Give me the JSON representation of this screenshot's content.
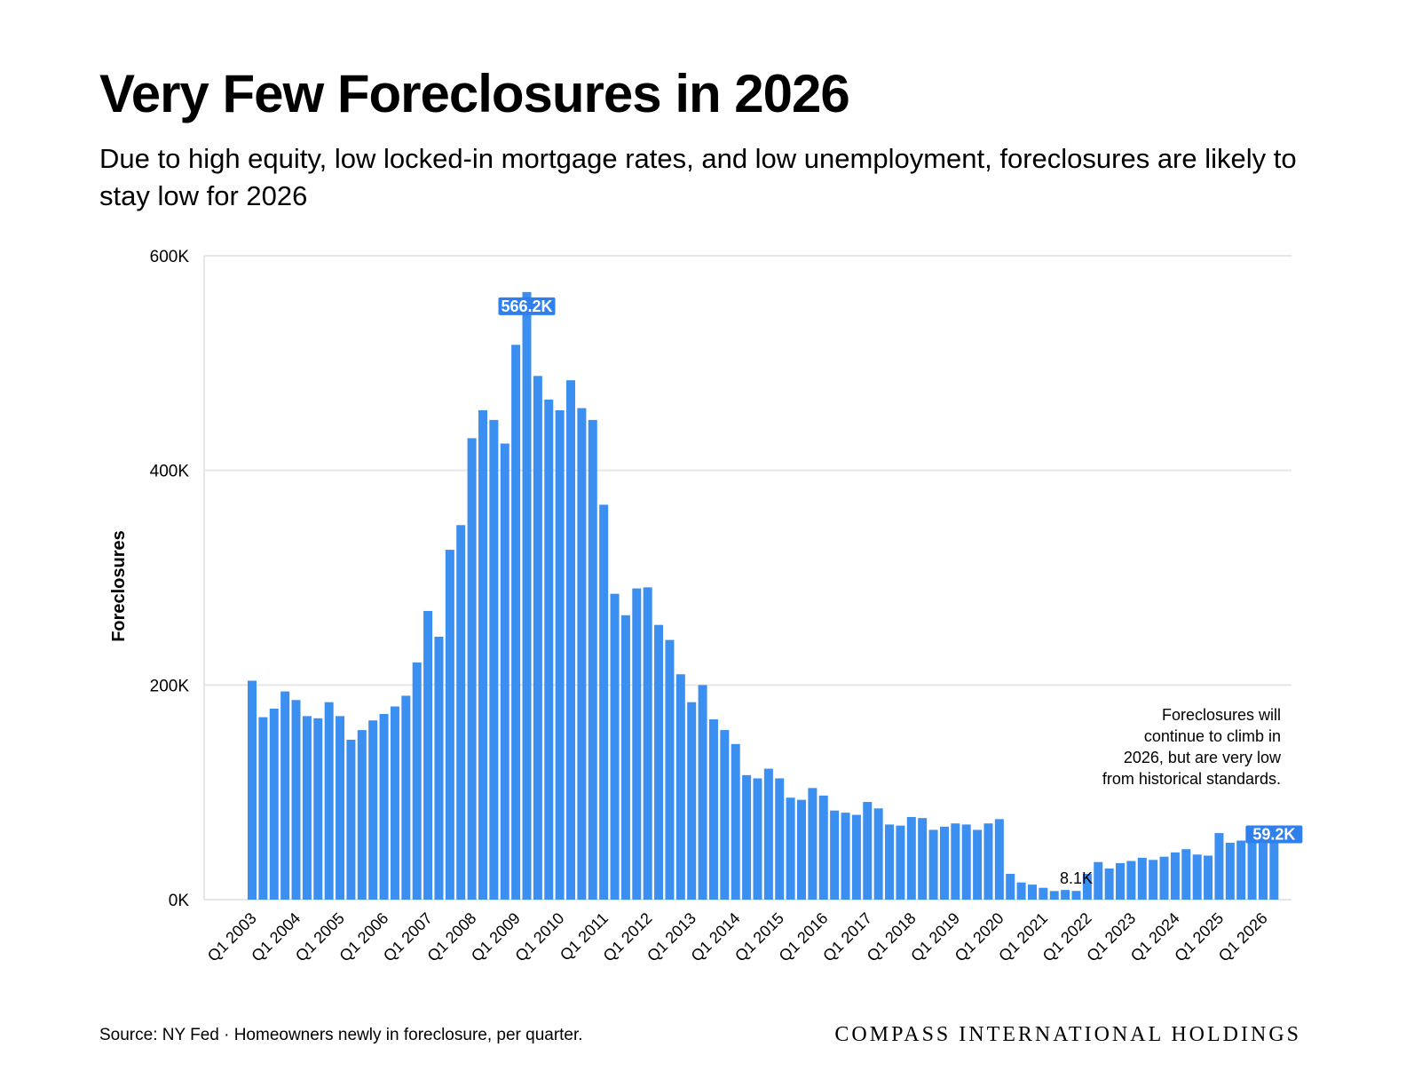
{
  "header": {
    "title": "Very Few Foreclosures in 2026",
    "subtitle": "Due to high equity, low locked-in mortgage rates, and low unemployment, foreclosures are likely to stay low for 2026"
  },
  "footer": {
    "source": "Source: NY Fed · Homeowners newly in foreclosure, per quarter.",
    "brand": "COMPASS INTERNATIONAL HOLDINGS"
  },
  "colors": {
    "bar": "#3b8ff0",
    "label_bg": "#2f80ed",
    "grid": "#e6e6e6"
  },
  "chart_data": {
    "type": "bar",
    "ylabel": "Foreclosures",
    "ylim": [
      0,
      600
    ],
    "unit": "K",
    "y_ticks": [
      {
        "value": 0,
        "label": "0K"
      },
      {
        "value": 200,
        "label": "200K"
      },
      {
        "value": 400,
        "label": "400K"
      },
      {
        "value": 600,
        "label": "600K"
      }
    ],
    "x_tick_labels": [
      "Q1 2003",
      "Q1 2004",
      "Q1 2005",
      "Q1 2006",
      "Q1 2007",
      "Q1 2008",
      "Q1 2009",
      "Q1 2010",
      "Q1 2011",
      "Q1 2012",
      "Q1 2013",
      "Q1 2014",
      "Q1 2015",
      "Q1 2016",
      "Q1 2017",
      "Q1 2018",
      "Q1 2019",
      "Q1 2020",
      "Q1 2021",
      "Q1 2022",
      "Q1 2023",
      "Q1 2024",
      "Q1 2025",
      "Q1 2026"
    ],
    "grid": "horizontal",
    "series": [
      {
        "values": [
          204,
          170,
          178,
          194,
          186,
          171,
          169,
          184,
          171,
          149,
          158,
          167,
          173,
          180,
          190,
          221,
          269,
          245,
          326,
          349,
          430,
          456,
          447,
          425,
          517,
          566.2,
          488,
          466,
          456,
          484,
          458,
          447,
          368,
          285,
          265,
          290,
          291,
          256,
          242,
          210,
          184,
          200,
          168,
          158,
          145,
          116,
          113,
          122,
          113,
          95,
          93,
          104,
          97,
          83,
          81,
          79,
          91,
          85,
          70,
          69,
          77,
          76,
          65,
          68,
          71,
          70,
          65,
          71,
          75,
          24,
          16,
          14,
          11,
          8,
          9,
          8.1,
          24,
          35,
          29,
          34,
          36,
          39,
          37,
          40,
          44,
          47,
          42,
          41,
          62,
          53,
          55,
          57,
          58,
          59.2
        ]
      }
    ],
    "data_labels": [
      {
        "index": 25,
        "text": "566.2K",
        "style": "highlight"
      },
      {
        "index": 75,
        "text": "8.1K",
        "style": "plain"
      },
      {
        "index": 93,
        "text": "59.2K",
        "style": "highlight"
      }
    ],
    "annotation": [
      "Foreclosures will",
      "continue to climb in",
      "2026, but are very low",
      "from historical standards."
    ]
  }
}
